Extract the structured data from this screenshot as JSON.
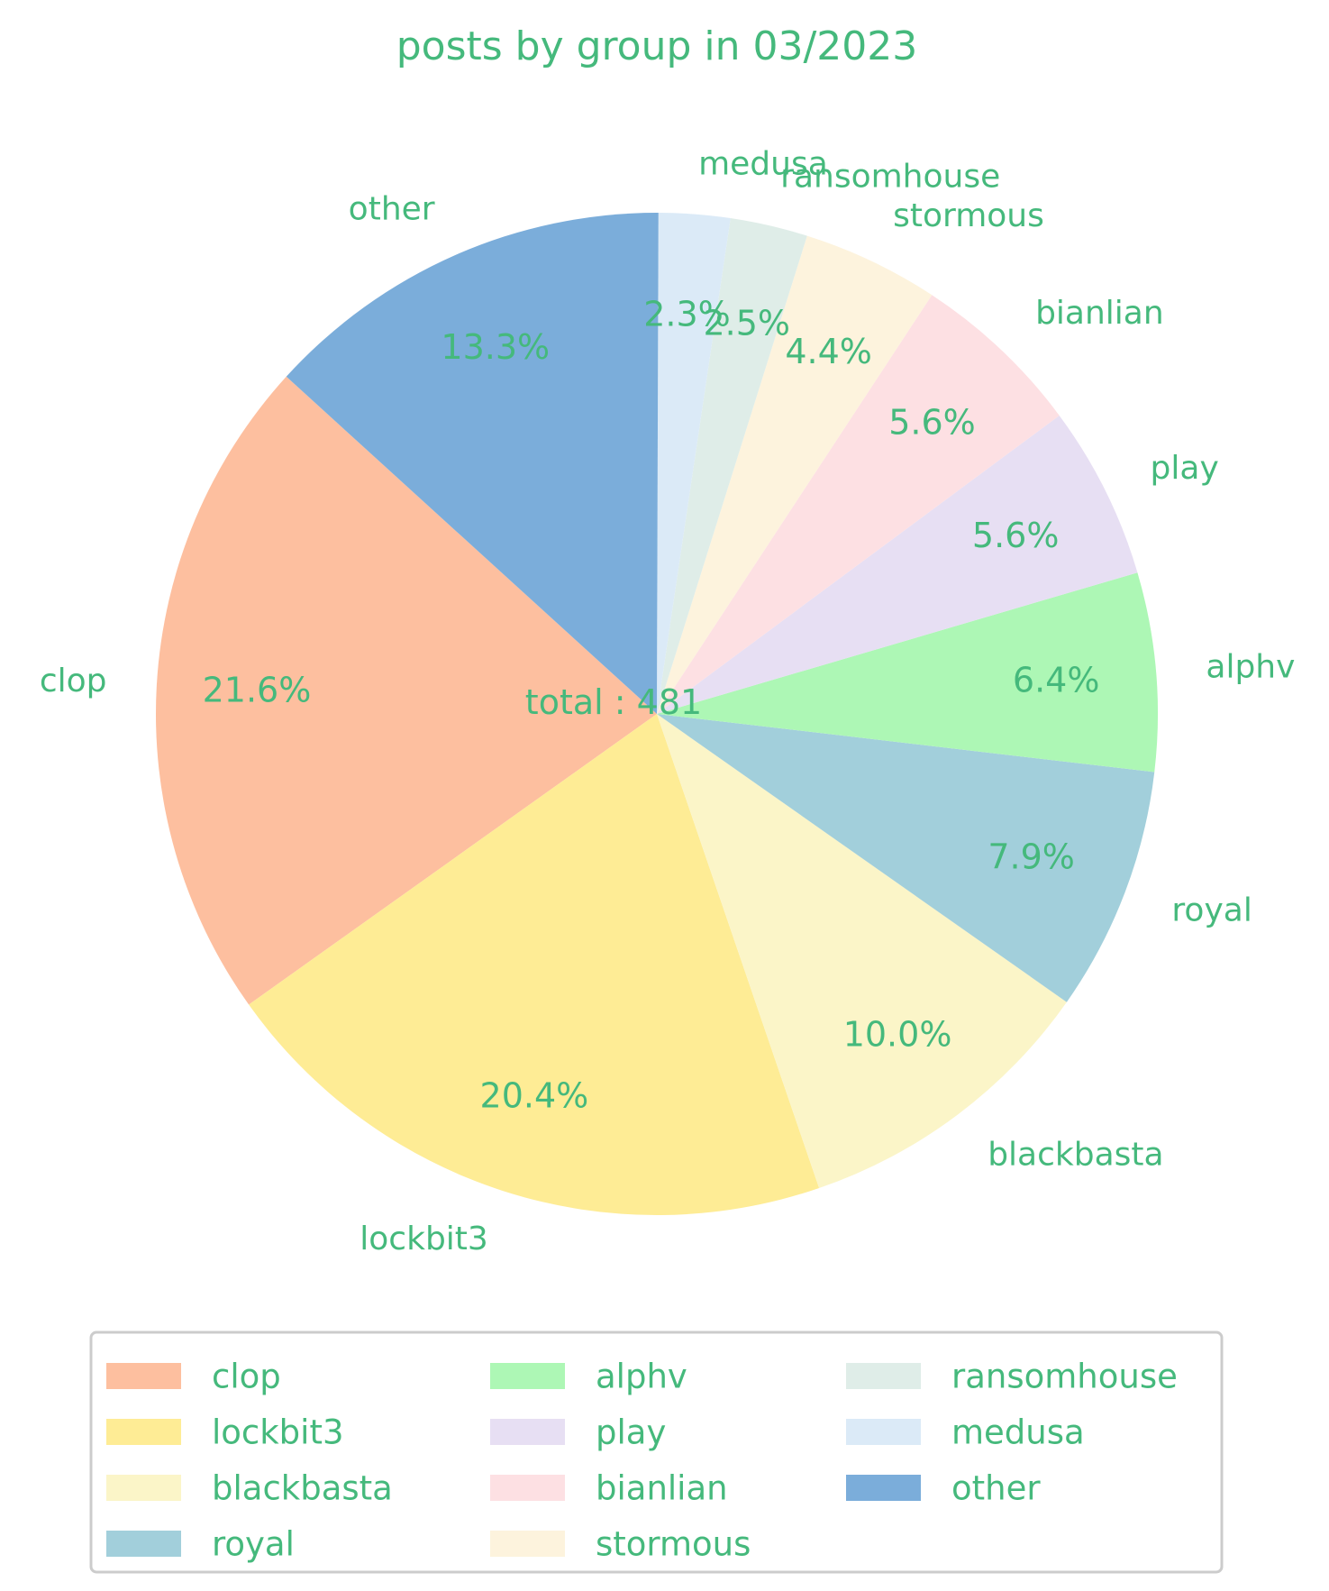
{
  "chart_data": {
    "type": "pie",
    "title": "posts by group in 03/2023",
    "center_label": "total : 481",
    "text_color": "#45b97c",
    "slices": [
      {
        "label": "clop",
        "pct": 21.6,
        "pct_label": "21.6%",
        "color": "#fdbf9f"
      },
      {
        "label": "lockbit3",
        "pct": 20.4,
        "pct_label": "20.4%",
        "color": "#feec95"
      },
      {
        "label": "blackbasta",
        "pct": 10.0,
        "pct_label": "10.0%",
        "color": "#fbf5c8"
      },
      {
        "label": "royal",
        "pct": 7.9,
        "pct_label": "7.9%",
        "color": "#a2cfdb"
      },
      {
        "label": "alphv",
        "pct": 6.4,
        "pct_label": "6.4%",
        "color": "#adf7b5"
      },
      {
        "label": "play",
        "pct": 5.6,
        "pct_label": "5.6%",
        "color": "#e7dff3"
      },
      {
        "label": "bianlian",
        "pct": 5.6,
        "pct_label": "5.6%",
        "color": "#fde0e3"
      },
      {
        "label": "stormous",
        "pct": 4.4,
        "pct_label": "4.4%",
        "color": "#fdf3dd"
      },
      {
        "label": "ransomhouse",
        "pct": 2.5,
        "pct_label": "2.5%",
        "color": "#dfede8"
      },
      {
        "label": "medusa",
        "pct": 2.3,
        "pct_label": "2.3%",
        "color": "#dbeaf7"
      },
      {
        "label": "other",
        "pct": 13.3,
        "pct_label": "13.3%",
        "color": "#7badda"
      }
    ],
    "legend": {
      "placement": "bottom",
      "columns": 3
    }
  }
}
